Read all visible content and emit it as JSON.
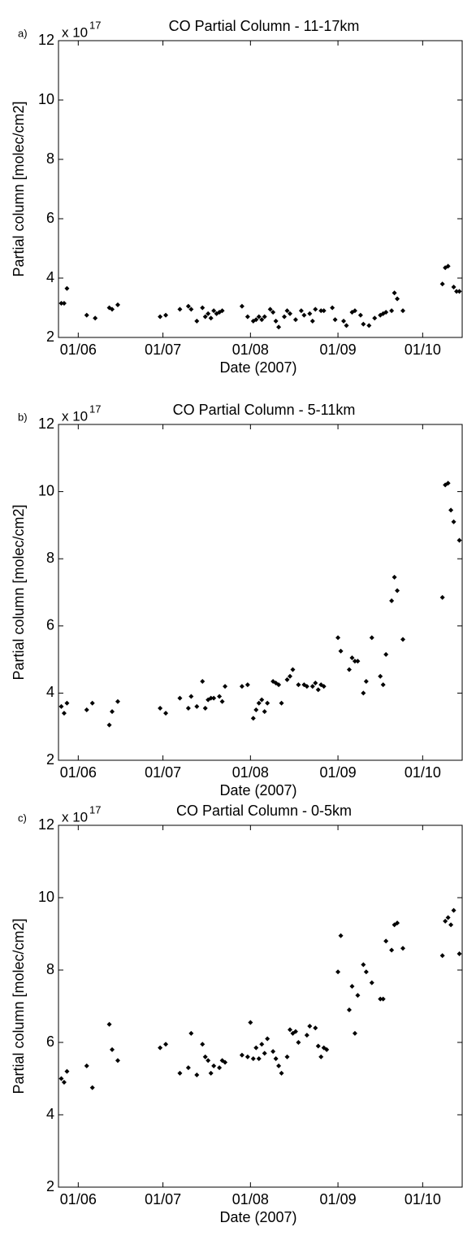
{
  "chart_data": [
    {
      "type": "scatter",
      "panel_label": "a)",
      "title": "CO Partial Column - 11-17km",
      "exponent_label": "x 10",
      "exponent": "17",
      "xlabel": "Date (2007)",
      "ylabel": "Partial column [molec/cm2]",
      "color": "#000000",
      "xlim": [
        145,
        288
      ],
      "ylim": [
        2,
        12
      ],
      "xticks": [
        {
          "value": 152,
          "label": "01/06"
        },
        {
          "value": 182,
          "label": "01/07"
        },
        {
          "value": 213,
          "label": "01/08"
        },
        {
          "value": 244,
          "label": "01/09"
        },
        {
          "value": 274,
          "label": "01/10"
        }
      ],
      "yticks": [
        2,
        4,
        6,
        8,
        10,
        12
      ],
      "x": [
        146,
        147,
        148,
        155,
        158,
        163,
        164,
        166,
        181,
        183,
        188,
        191,
        192,
        194,
        196,
        197,
        198,
        199,
        200,
        201,
        202,
        203,
        210,
        212,
        214,
        215,
        216,
        217,
        218,
        220,
        221,
        222,
        223,
        225,
        226,
        227,
        229,
        231,
        232,
        234,
        235,
        236,
        238,
        239,
        242,
        243,
        246,
        247,
        249,
        250,
        252,
        253,
        255,
        257,
        259,
        260,
        261,
        263,
        264,
        265,
        267,
        281,
        282,
        283,
        285,
        286,
        287
      ],
      "values": [
        3.15,
        3.15,
        3.65,
        2.75,
        2.65,
        3.0,
        2.95,
        3.1,
        2.7,
        2.75,
        2.95,
        3.05,
        2.95,
        2.55,
        3.0,
        2.7,
        2.8,
        2.65,
        2.9,
        2.8,
        2.85,
        2.9,
        3.05,
        2.7,
        2.55,
        2.6,
        2.7,
        2.6,
        2.7,
        2.95,
        2.85,
        2.55,
        2.35,
        2.7,
        2.9,
        2.8,
        2.6,
        2.9,
        2.75,
        2.8,
        2.55,
        2.95,
        2.9,
        2.9,
        3.0,
        2.6,
        2.55,
        2.4,
        2.85,
        2.9,
        2.75,
        2.45,
        2.4,
        2.65,
        2.75,
        2.8,
        2.85,
        2.9,
        3.5,
        3.3,
        2.9,
        3.8,
        4.35,
        4.4,
        3.7,
        3.55,
        3.55
      ]
    },
    {
      "type": "scatter",
      "panel_label": "b)",
      "title": "CO Partial Column - 5-11km",
      "exponent_label": "x 10",
      "exponent": "17",
      "xlabel": "Date (2007)",
      "ylabel": "Partial column [molec/cm2]",
      "color": "#000000",
      "xlim": [
        145,
        288
      ],
      "ylim": [
        2,
        12
      ],
      "xticks": [
        {
          "value": 152,
          "label": "01/06"
        },
        {
          "value": 182,
          "label": "01/07"
        },
        {
          "value": 213,
          "label": "01/08"
        },
        {
          "value": 244,
          "label": "01/09"
        },
        {
          "value": 274,
          "label": "01/10"
        }
      ],
      "yticks": [
        2,
        4,
        6,
        8,
        10,
        12
      ],
      "x": [
        146,
        147,
        148,
        155,
        157,
        163,
        164,
        166,
        181,
        183,
        188,
        191,
        192,
        194,
        196,
        197,
        198,
        199,
        200,
        202,
        203,
        204,
        210,
        212,
        214,
        215,
        216,
        217,
        218,
        219,
        221,
        222,
        223,
        224,
        226,
        227,
        228,
        230,
        232,
        233,
        235,
        236,
        237,
        238,
        239,
        244,
        245,
        248,
        249,
        250,
        251,
        253,
        254,
        256,
        259,
        260,
        261,
        263,
        264,
        265,
        267,
        281,
        282,
        283,
        284,
        285,
        287
      ],
      "values": [
        3.6,
        3.4,
        3.7,
        3.5,
        3.7,
        3.05,
        3.45,
        3.75,
        3.55,
        3.4,
        3.85,
        3.55,
        3.9,
        3.6,
        4.35,
        3.55,
        3.8,
        3.85,
        3.85,
        3.9,
        3.75,
        4.2,
        4.2,
        4.25,
        3.25,
        3.5,
        3.7,
        3.8,
        3.45,
        3.7,
        4.35,
        4.3,
        4.25,
        3.7,
        4.4,
        4.5,
        4.7,
        4.25,
        4.25,
        4.2,
        4.2,
        4.3,
        4.1,
        4.25,
        4.2,
        5.65,
        5.25,
        4.7,
        5.05,
        4.95,
        4.95,
        4.0,
        4.35,
        5.65,
        4.5,
        4.25,
        5.15,
        6.75,
        7.45,
        7.05,
        5.6,
        6.85,
        10.2,
        10.25,
        9.45,
        9.1,
        8.55
      ]
    },
    {
      "type": "scatter",
      "panel_label": "c)",
      "title": "CO Partial Column - 0-5km",
      "exponent_label": "x 10",
      "exponent": "17",
      "xlabel": "Date (2007)",
      "ylabel": "Partial column [molec/cm2]",
      "color": "#000000",
      "xlim": [
        145,
        288
      ],
      "ylim": [
        2,
        12
      ],
      "xticks": [
        {
          "value": 152,
          "label": "01/06"
        },
        {
          "value": 182,
          "label": "01/07"
        },
        {
          "value": 213,
          "label": "01/08"
        },
        {
          "value": 244,
          "label": "01/09"
        },
        {
          "value": 274,
          "label": "01/10"
        }
      ],
      "yticks": [
        2,
        4,
        6,
        8,
        10,
        12
      ],
      "x": [
        146,
        147,
        148,
        155,
        157,
        163,
        164,
        166,
        181,
        183,
        188,
        191,
        192,
        194,
        196,
        197,
        198,
        199,
        200,
        202,
        203,
        204,
        210,
        212,
        213,
        214,
        215,
        216,
        217,
        218,
        219,
        221,
        222,
        223,
        224,
        226,
        227,
        228,
        229,
        230,
        233,
        234,
        236,
        237,
        238,
        239,
        240,
        244,
        245,
        248,
        249,
        250,
        251,
        253,
        254,
        256,
        259,
        260,
        261,
        263,
        264,
        265,
        267,
        281,
        282,
        283,
        284,
        285,
        287
      ],
      "values": [
        5.0,
        4.9,
        5.2,
        5.35,
        4.75,
        6.5,
        5.8,
        5.5,
        5.85,
        5.95,
        5.15,
        5.3,
        6.25,
        5.1,
        5.95,
        5.6,
        5.5,
        5.15,
        5.35,
        5.3,
        5.5,
        5.45,
        5.65,
        5.6,
        6.55,
        5.55,
        5.85,
        5.55,
        5.95,
        5.7,
        6.1,
        5.75,
        5.55,
        5.35,
        5.15,
        5.6,
        6.35,
        6.25,
        6.3,
        6.0,
        6.2,
        6.45,
        6.4,
        5.9,
        5.6,
        5.85,
        5.8,
        7.95,
        8.95,
        6.9,
        7.55,
        6.25,
        7.3,
        8.15,
        7.95,
        7.65,
        7.2,
        7.2,
        8.8,
        8.55,
        9.25,
        9.3,
        8.6,
        8.4,
        9.35,
        9.45,
        9.25,
        9.65,
        8.45
      ]
    }
  ]
}
